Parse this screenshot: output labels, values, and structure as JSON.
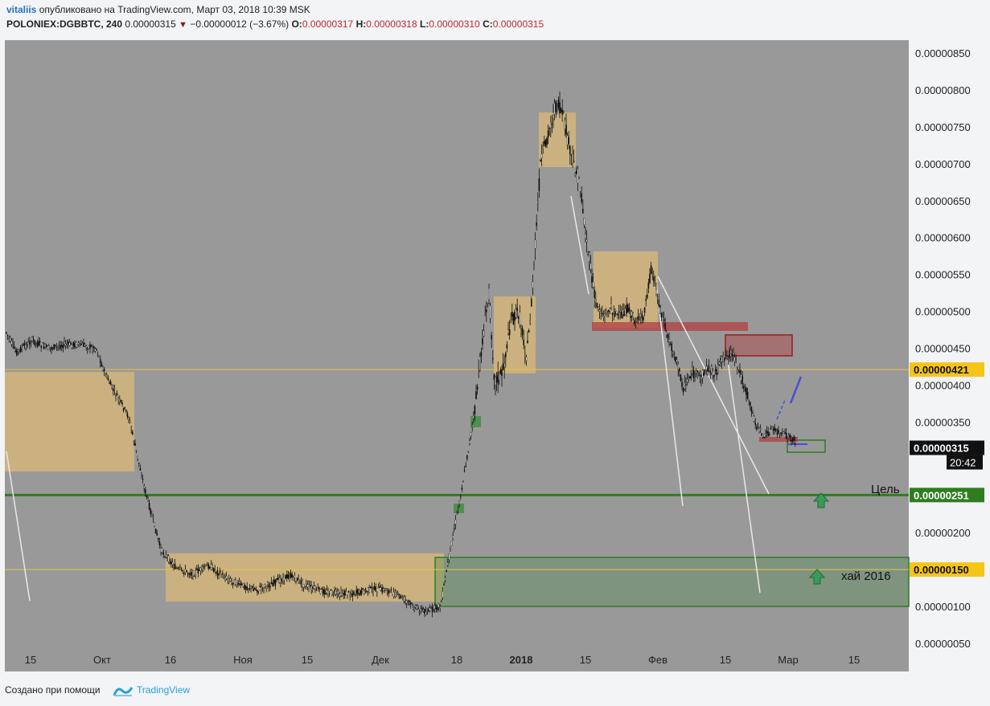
{
  "header": {
    "user": "vitaliis",
    "published": " опубликовано на TradingView.com, Март 03, 2018 10:39 MSK",
    "symbol": "POLONIEX:DGBBTC, 240",
    "last": "0.00000315",
    "change": "−0.00000012 (−3.67%)",
    "o_label": "O:",
    "o_value": "0.00000317",
    "h_label": "H:",
    "h_value": "0.00000318",
    "l_label": "L:",
    "l_value": "0.00000310",
    "c_label": "C:",
    "c_value": "0.00000315"
  },
  "chart_data": {
    "type": "candlestick",
    "price_axis_ticks": [
      "0.00000850",
      "0.00000800",
      "0.00000750",
      "0.00000700",
      "0.00000650",
      "0.00000600",
      "0.00000550",
      "0.00000500",
      "0.00000450",
      "0.00000400",
      "0.00000350",
      "0.00000200",
      "0.00000100",
      "0.00000050"
    ],
    "time_axis_ticks": [
      "15",
      "Окт",
      "16",
      "Ноя",
      "15",
      "Дек",
      "18",
      "2018",
      "15",
      "Фев",
      "15",
      "Мар",
      "15"
    ],
    "price_labels": [
      {
        "value": "0.00000421",
        "bg": "#f5c518",
        "color": "#111"
      },
      {
        "value": "0.00000315",
        "bg": "#111111",
        "color": "#ffffff"
      },
      {
        "value": "20:42",
        "bg": "#111111",
        "color": "#ffffff"
      },
      {
        "value": "0.00000251",
        "bg": "#2f7d1f",
        "color": "#ffffff"
      },
      {
        "value": "0.00000150",
        "bg": "#f5c518",
        "color": "#111"
      }
    ],
    "annotations": [
      {
        "text": "Цель"
      },
      {
        "text": "хай 2016"
      }
    ],
    "horizontal_lines": [
      {
        "price": 4.21e-06,
        "color": "#e8c24a"
      },
      {
        "price": 1.5e-06,
        "color": "#e8c24a"
      },
      {
        "price": 2.51e-06,
        "color": "#2f7d1f"
      }
    ],
    "colors": {
      "background": "#999999",
      "candle": "#111111",
      "zone_tan": "#d2b57a",
      "zone_green": "#5f8f5f",
      "zone_red": "#b04040",
      "arrow": "#3a9a5a"
    }
  },
  "footer": {
    "made_with": "Создано при помощи",
    "brand": "TradingView"
  }
}
